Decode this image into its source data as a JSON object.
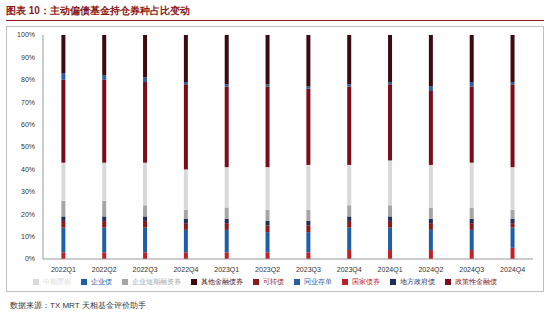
{
  "chart_data": {
    "type": "bar",
    "title": "图表 10：主动偏债基金持仓券种占比变动",
    "source": "数据来源：TX MRT 天相基金评价助手",
    "stacked": true,
    "grid": false,
    "legend": "bottom",
    "categories": [
      "2022Q1",
      "2022Q2",
      "2022Q3",
      "2022Q4",
      "2023Q1",
      "2023Q2",
      "2023Q3",
      "2023Q4",
      "2024Q1",
      "2024Q2",
      "2024Q3",
      "2024Q4"
    ],
    "ylim": [
      0,
      100
    ],
    "yticks": [
      {
        "value": 0,
        "label": "0%"
      },
      {
        "value": 10,
        "label": "10%"
      },
      {
        "value": 20,
        "label": "20%"
      },
      {
        "value": 30,
        "label": "30%"
      },
      {
        "value": 40,
        "label": "40%"
      },
      {
        "value": 50,
        "label": "50%"
      },
      {
        "value": 60,
        "label": "60%"
      },
      {
        "value": 70,
        "label": "70%"
      },
      {
        "value": 80,
        "label": "80%"
      },
      {
        "value": 90,
        "label": "90%"
      },
      {
        "value": 100,
        "label": "100%"
      }
    ],
    "series": [
      {
        "name": "国家债券",
        "color": "#c0202a",
        "values": [
          3,
          3,
          3,
          3,
          3,
          3,
          3,
          4,
          4,
          4,
          4,
          5
        ]
      },
      {
        "name": "企业债",
        "color": "#1f5fa8",
        "values": [
          11,
          11,
          11,
          10,
          10,
          9,
          9,
          10,
          10,
          9,
          9,
          9
        ]
      },
      {
        "name": "可转债",
        "color": "#8b1a1a",
        "values": [
          3,
          3,
          3,
          3,
          3,
          3,
          3,
          3,
          3,
          3,
          3,
          2
        ]
      },
      {
        "name": "地方政府债",
        "color": "#1f2f5a",
        "values": [
          2,
          2,
          2,
          2,
          2,
          2,
          2,
          2,
          2,
          2,
          2,
          2
        ]
      },
      {
        "name": "企业短期融资券",
        "color": "#a6a6a6",
        "values": [
          7,
          7,
          5,
          4,
          5,
          5,
          5,
          5,
          5,
          5,
          5,
          4
        ]
      },
      {
        "name": "中期票据",
        "color": "#d9d9d9",
        "values": [
          17,
          17,
          19,
          18,
          18,
          19,
          20,
          18,
          20,
          19,
          20,
          19
        ]
      },
      {
        "name": "政策性金融债",
        "color": "#7b0c1a",
        "values": [
          37,
          37,
          36,
          38,
          36,
          36,
          34,
          35,
          34,
          33,
          34,
          37
        ]
      },
      {
        "name": "同业存单",
        "color": "#2e5d9f",
        "values": [
          3,
          2,
          2,
          1,
          1,
          1,
          1,
          1,
          1,
          2,
          2,
          1
        ]
      },
      {
        "name": "其他金融债券",
        "color": "#3d0a12",
        "values": [
          17,
          18,
          19,
          21,
          22,
          22,
          23,
          22,
          21,
          23,
          21,
          21
        ]
      }
    ]
  }
}
